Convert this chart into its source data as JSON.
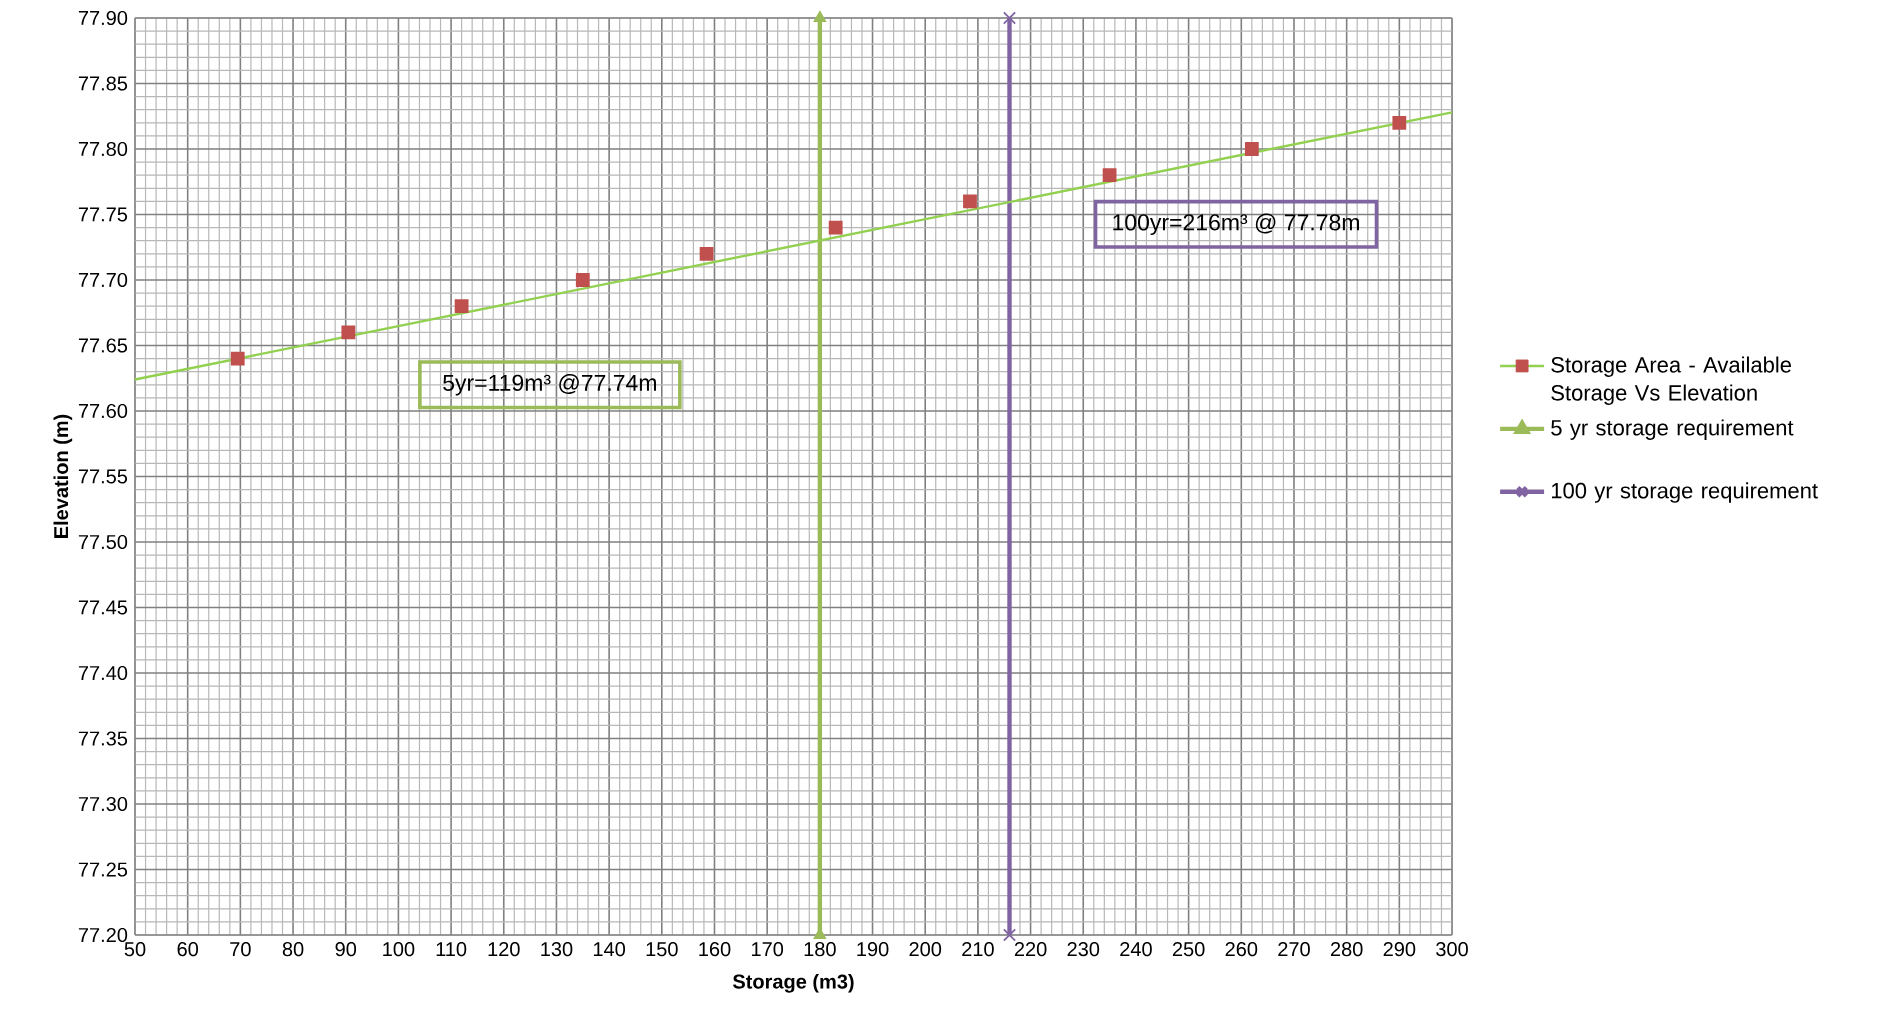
{
  "chart_data": {
    "type": "scatter",
    "xlabel": "Storage (m3)",
    "ylabel": "Elevation (m)",
    "xlim": [
      50,
      300
    ],
    "ylim": [
      77.2,
      77.9
    ],
    "xticks": [
      50,
      60,
      70,
      80,
      90,
      100,
      110,
      120,
      130,
      140,
      150,
      160,
      170,
      180,
      190,
      200,
      210,
      220,
      230,
      240,
      250,
      260,
      270,
      280,
      290,
      300
    ],
    "yticks": [
      {
        "value": 77.2,
        "label": "77.20"
      },
      {
        "value": 77.25,
        "label": "77.25"
      },
      {
        "value": 77.3,
        "label": "77.30"
      },
      {
        "value": 77.35,
        "label": "77.35"
      },
      {
        "value": 77.4,
        "label": "77.40"
      },
      {
        "value": 77.45,
        "label": "77.45"
      },
      {
        "value": 77.5,
        "label": "77.50"
      },
      {
        "value": 77.55,
        "label": "77.55"
      },
      {
        "value": 77.6,
        "label": "77.60"
      },
      {
        "value": 77.65,
        "label": "77.65"
      },
      {
        "value": 77.7,
        "label": "77.70"
      },
      {
        "value": 77.75,
        "label": "77.75"
      },
      {
        "value": 77.8,
        "label": "77.80"
      },
      {
        "value": 77.85,
        "label": "77.85"
      },
      {
        "value": 77.9,
        "label": "77.90"
      }
    ],
    "grid": true,
    "legend": "right",
    "series": [
      {
        "name": "Storage Area - Available Storage Vs Elevation",
        "marker": "square",
        "color": "#c0504d",
        "x": [
          69.5,
          90.5,
          112,
          135,
          158.5,
          183,
          208.5,
          235,
          262,
          290
        ],
        "values": [
          77.64,
          77.66,
          77.68,
          77.7,
          77.72,
          77.74,
          77.76,
          77.78,
          77.8,
          77.82
        ]
      },
      {
        "name": "5 yr storage requirement",
        "type": "line",
        "marker": "triangle",
        "color": "#9bbb59",
        "x": [
          180,
          180
        ],
        "values": [
          77.2,
          77.9
        ]
      },
      {
        "name": "100 yr storage requirement",
        "type": "line",
        "marker": "cross",
        "color": "#8064a2",
        "x": [
          216,
          216
        ],
        "values": [
          77.2,
          77.9
        ]
      },
      {
        "type": "line",
        "marker": "none",
        "color": "#92d050",
        "x": [
          50,
          300
        ],
        "values": [
          77.624,
          77.828
        ]
      }
    ],
    "annotations": [
      "5yr=119m³ @77.74m",
      "100yr=216m³ @ 77.78m"
    ]
  }
}
